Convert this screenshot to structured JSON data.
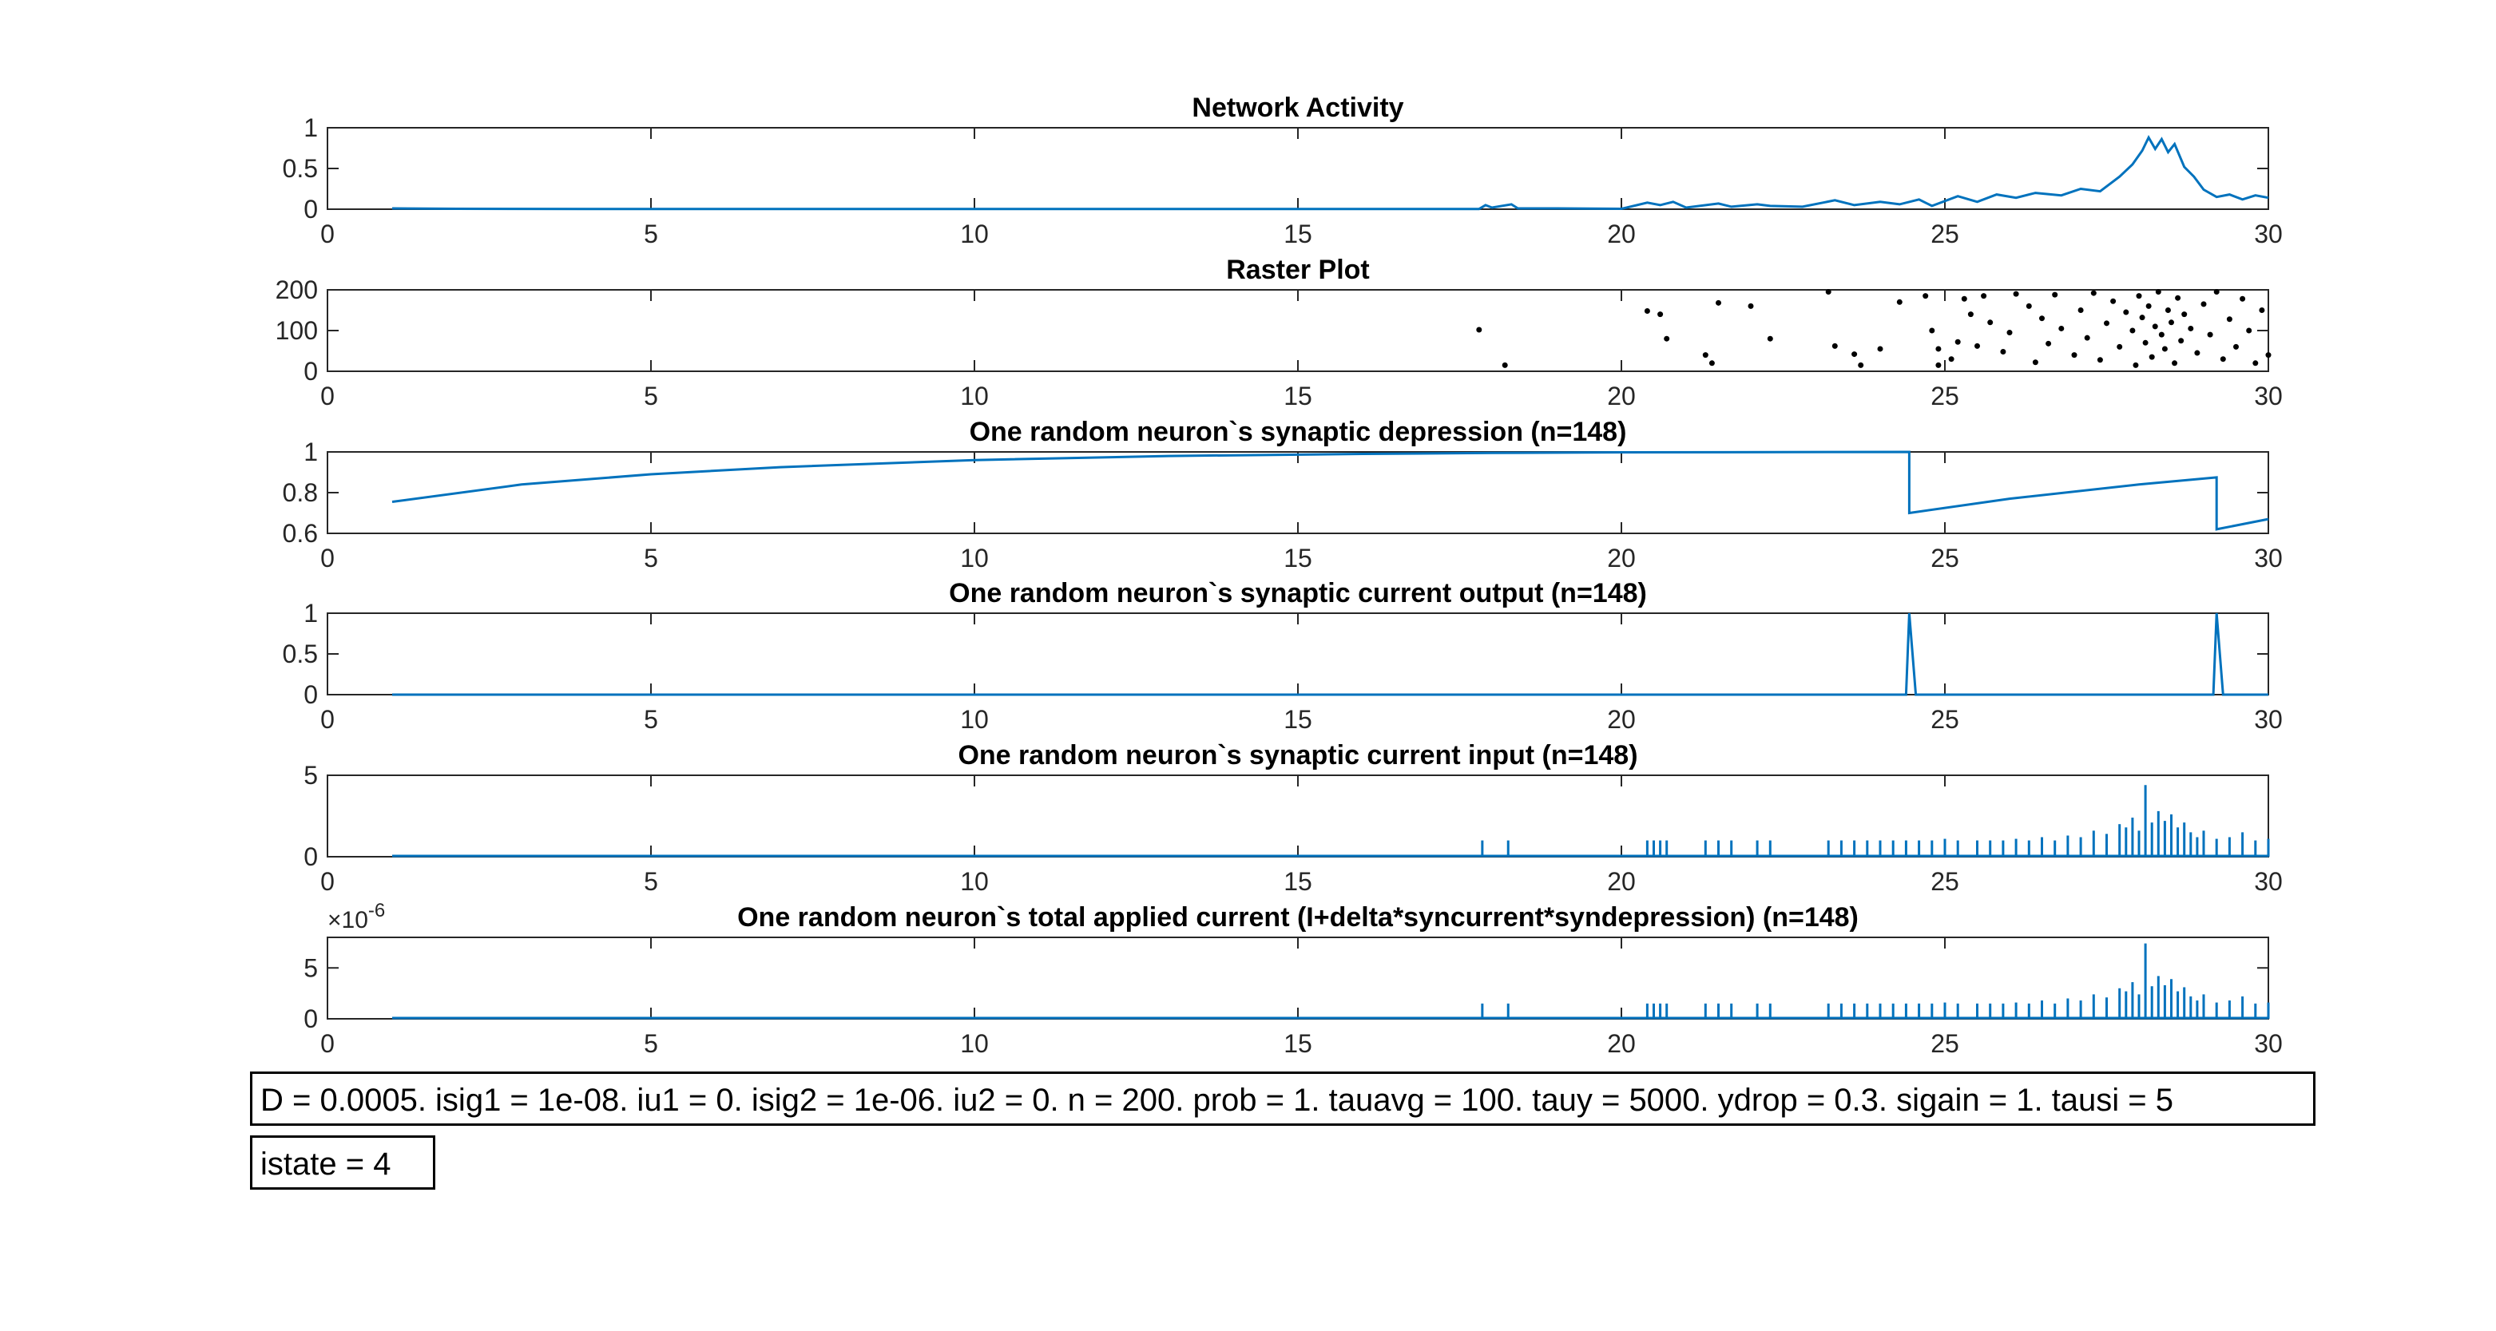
{
  "colors": {
    "line": "#0072BD",
    "raster": "#000000",
    "axis": "#262626",
    "grid": "#d9d9d9"
  },
  "x_ticks": [
    "0",
    "5",
    "10",
    "15",
    "20",
    "25",
    "30"
  ],
  "chart_data": [
    {
      "type": "line",
      "title": "Network Activity",
      "xlim": [
        0,
        30
      ],
      "ylim": [
        0,
        1
      ],
      "y_ticks": [
        0,
        0.5,
        1
      ],
      "y_tick_labels": [
        "0",
        "0.5",
        "1"
      ],
      "series": [
        {
          "values": [
            [
              1,
              0.01
            ],
            [
              2,
              0.005
            ],
            [
              4,
              0.003
            ],
            [
              8,
              0.002
            ],
            [
              12,
              0.002
            ],
            [
              16,
              0.002
            ],
            [
              17.8,
              0.003
            ],
            [
              17.9,
              0.05
            ],
            [
              18.0,
              0.02
            ],
            [
              18.3,
              0.06
            ],
            [
              18.4,
              0.01
            ],
            [
              19,
              0.01
            ],
            [
              20,
              0.005
            ],
            [
              20.4,
              0.08
            ],
            [
              20.6,
              0.05
            ],
            [
              20.8,
              0.09
            ],
            [
              21.0,
              0.02
            ],
            [
              21.5,
              0.07
            ],
            [
              21.7,
              0.03
            ],
            [
              22.1,
              0.06
            ],
            [
              22.3,
              0.04
            ],
            [
              22.8,
              0.03
            ],
            [
              23.3,
              0.11
            ],
            [
              23.6,
              0.05
            ],
            [
              24.0,
              0.09
            ],
            [
              24.3,
              0.06
            ],
            [
              24.6,
              0.12
            ],
            [
              24.8,
              0.04
            ],
            [
              25.2,
              0.16
            ],
            [
              25.5,
              0.09
            ],
            [
              25.8,
              0.18
            ],
            [
              26.1,
              0.14
            ],
            [
              26.4,
              0.2
            ],
            [
              26.8,
              0.17
            ],
            [
              27.1,
              0.25
            ],
            [
              27.4,
              0.22
            ],
            [
              27.7,
              0.4
            ],
            [
              27.9,
              0.55
            ],
            [
              28.05,
              0.72
            ],
            [
              28.15,
              0.88
            ],
            [
              28.25,
              0.74
            ],
            [
              28.35,
              0.86
            ],
            [
              28.45,
              0.7
            ],
            [
              28.55,
              0.8
            ],
            [
              28.7,
              0.52
            ],
            [
              28.85,
              0.4
            ],
            [
              29.0,
              0.24
            ],
            [
              29.2,
              0.15
            ],
            [
              29.4,
              0.18
            ],
            [
              29.6,
              0.12
            ],
            [
              29.8,
              0.17
            ],
            [
              30,
              0.14
            ]
          ]
        }
      ]
    },
    {
      "type": "scatter",
      "title": "Raster Plot",
      "xlim": [
        0,
        30
      ],
      "ylim": [
        0,
        200
      ],
      "y_ticks": [
        0,
        100,
        200
      ],
      "y_tick_labels": [
        "0",
        "100",
        "200"
      ],
      "series": [
        {
          "values": [
            [
              17.8,
              102
            ],
            [
              18.2,
              15
            ],
            [
              20.4,
              148
            ],
            [
              20.6,
              140
            ],
            [
              20.7,
              80
            ],
            [
              21.3,
              40
            ],
            [
              21.5,
              168
            ],
            [
              21.4,
              20
            ],
            [
              22.0,
              160
            ],
            [
              22.3,
              80
            ],
            [
              23.2,
              195
            ],
            [
              23.3,
              62
            ],
            [
              23.6,
              42
            ],
            [
              23.7,
              15
            ],
            [
              24.0,
              55
            ],
            [
              24.3,
              170
            ],
            [
              24.7,
              185
            ],
            [
              24.8,
              100
            ],
            [
              24.9,
              55
            ],
            [
              24.9,
              15
            ],
            [
              25.1,
              30
            ],
            [
              25.2,
              72
            ],
            [
              25.3,
              178
            ],
            [
              25.4,
              140
            ],
            [
              25.5,
              62
            ],
            [
              25.6,
              185
            ],
            [
              25.7,
              120
            ],
            [
              25.9,
              48
            ],
            [
              26.0,
              95
            ],
            [
              26.1,
              190
            ],
            [
              26.3,
              160
            ],
            [
              26.4,
              22
            ],
            [
              26.5,
              130
            ],
            [
              26.6,
              68
            ],
            [
              26.7,
              188
            ],
            [
              26.8,
              105
            ],
            [
              27.0,
              40
            ],
            [
              27.1,
              150
            ],
            [
              27.2,
              82
            ],
            [
              27.3,
              192
            ],
            [
              27.4,
              28
            ],
            [
              27.5,
              118
            ],
            [
              27.6,
              172
            ],
            [
              27.7,
              60
            ],
            [
              27.8,
              145
            ],
            [
              27.9,
              100
            ],
            [
              27.95,
              15
            ],
            [
              28.0,
              185
            ],
            [
              28.05,
              132
            ],
            [
              28.1,
              70
            ],
            [
              28.15,
              160
            ],
            [
              28.2,
              35
            ],
            [
              28.25,
              110
            ],
            [
              28.3,
              195
            ],
            [
              28.35,
              90
            ],
            [
              28.4,
              55
            ],
            [
              28.45,
              150
            ],
            [
              28.5,
              120
            ],
            [
              28.55,
              20
            ],
            [
              28.6,
              180
            ],
            [
              28.65,
              75
            ],
            [
              28.7,
              140
            ],
            [
              28.8,
              105
            ],
            [
              28.9,
              45
            ],
            [
              29.0,
              165
            ],
            [
              29.1,
              90
            ],
            [
              29.2,
              195
            ],
            [
              29.3,
              30
            ],
            [
              29.4,
              128
            ],
            [
              29.5,
              60
            ],
            [
              29.6,
              178
            ],
            [
              29.7,
              100
            ],
            [
              29.8,
              20
            ],
            [
              29.9,
              150
            ],
            [
              30.0,
              40
            ]
          ]
        }
      ]
    },
    {
      "type": "line",
      "title": "One random neuron`s synaptic depression (n=148)",
      "xlim": [
        0,
        30
      ],
      "ylim": [
        0.6,
        1
      ],
      "y_ticks": [
        0.6,
        0.8,
        1
      ],
      "y_tick_labels": [
        "0.6",
        "0.8",
        "1"
      ],
      "series": [
        {
          "values": [
            [
              1,
              0.755
            ],
            [
              3,
              0.84
            ],
            [
              5,
              0.89
            ],
            [
              7,
              0.925
            ],
            [
              10,
              0.96
            ],
            [
              13,
              0.98
            ],
            [
              16,
              0.99
            ],
            [
              18,
              0.995
            ],
            [
              20,
              0.998
            ],
            [
              24.45,
              1.0
            ],
            [
              24.45,
              0.7
            ],
            [
              26,
              0.77
            ],
            [
              28,
              0.84
            ],
            [
              29.2,
              0.875
            ],
            [
              29.2,
              0.62
            ],
            [
              30,
              0.67
            ]
          ]
        }
      ]
    },
    {
      "type": "line",
      "title": "One random neuron`s synaptic current output (n=148)",
      "xlim": [
        0,
        30
      ],
      "ylim": [
        0,
        1
      ],
      "y_ticks": [
        0,
        0.5,
        1
      ],
      "y_tick_labels": [
        "0",
        "0.5",
        "1"
      ],
      "series": [
        {
          "values": [
            [
              1,
              0
            ],
            [
              24.4,
              0
            ],
            [
              24.45,
              1.0
            ],
            [
              24.55,
              0
            ],
            [
              29.15,
              0
            ],
            [
              29.2,
              1.0
            ],
            [
              29.3,
              0
            ],
            [
              30,
              0
            ]
          ]
        }
      ]
    },
    {
      "type": "bar",
      "title": "One random neuron`s synaptic current input (n=148)",
      "xlim": [
        0,
        30
      ],
      "ylim": [
        0,
        5
      ],
      "y_ticks": [
        0,
        5
      ],
      "y_tick_labels": [
        "0",
        "5"
      ],
      "x": [
        17.85,
        18.25,
        20.4,
        20.5,
        20.6,
        20.7,
        21.3,
        21.5,
        21.7,
        22.1,
        22.3,
        23.2,
        23.4,
        23.6,
        23.8,
        24.0,
        24.2,
        24.4,
        24.6,
        24.8,
        25.0,
        25.2,
        25.5,
        25.7,
        25.9,
        26.1,
        26.3,
        26.5,
        26.7,
        26.9,
        27.1,
        27.3,
        27.5,
        27.7,
        27.8,
        27.9,
        28.0,
        28.1,
        28.2,
        28.3,
        28.4,
        28.5,
        28.6,
        28.7,
        28.8,
        28.9,
        29.0,
        29.2,
        29.4,
        29.6,
        29.8,
        30.0
      ],
      "values": [
        1,
        1,
        1,
        1,
        1,
        1,
        1,
        1,
        1,
        1,
        1,
        1,
        1,
        1,
        1,
        1,
        1,
        1,
        1,
        1,
        1.1,
        1,
        1,
        1,
        1,
        1.1,
        1,
        1.2,
        1,
        1.3,
        1.2,
        1.6,
        1.4,
        2.0,
        1.8,
        2.4,
        1.6,
        4.4,
        2.1,
        2.8,
        2.2,
        2.6,
        1.8,
        2.1,
        1.5,
        1.2,
        1.6,
        1.1,
        1.2,
        1.5,
        1.0,
        1.1
      ]
    },
    {
      "type": "bar",
      "title": "One random neuron`s total applied current (I+delta*syncurrent*syndepression) (n=148)",
      "xlim": [
        0,
        30
      ],
      "ylim": [
        0,
        8
      ],
      "y_ticks": [
        0,
        5
      ],
      "y_tick_labels": [
        "0",
        "5"
      ],
      "exponent_label": "×10",
      "exponent_power": "-6",
      "x": [
        17.85,
        18.25,
        20.4,
        20.5,
        20.6,
        20.7,
        21.3,
        21.5,
        21.7,
        22.1,
        22.3,
        23.2,
        23.4,
        23.6,
        23.8,
        24.0,
        24.2,
        24.4,
        24.6,
        24.8,
        25.0,
        25.2,
        25.5,
        25.7,
        25.9,
        26.1,
        26.3,
        26.5,
        26.7,
        26.9,
        27.1,
        27.3,
        27.5,
        27.7,
        27.8,
        27.9,
        28.0,
        28.1,
        28.2,
        28.3,
        28.4,
        28.5,
        28.6,
        28.7,
        28.8,
        28.9,
        29.0,
        29.2,
        29.4,
        29.6,
        29.8,
        30.0
      ],
      "values": [
        1.5,
        1.5,
        1.5,
        1.5,
        1.5,
        1.5,
        1.5,
        1.5,
        1.5,
        1.5,
        1.5,
        1.5,
        1.5,
        1.5,
        1.5,
        1.5,
        1.5,
        1.5,
        1.5,
        1.5,
        1.6,
        1.5,
        1.5,
        1.5,
        1.5,
        1.6,
        1.5,
        1.8,
        1.5,
        2.0,
        1.8,
        2.4,
        2.1,
        3.0,
        2.7,
        3.6,
        2.4,
        7.4,
        3.2,
        4.2,
        3.3,
        3.9,
        2.7,
        3.1,
        2.2,
        1.8,
        2.4,
        1.6,
        1.8,
        2.2,
        1.5,
        1.6
      ]
    }
  ],
  "params_text": "D = 0.0005. isig1 = 1e-08. iu1 = 0. isig2 = 1e-06. iu2 = 0. n = 200. prob = 1. tauavg = 100. tauy = 5000. ydrop = 0.3. sigain = 1. tausi = 5",
  "istate_text": "istate = 4"
}
